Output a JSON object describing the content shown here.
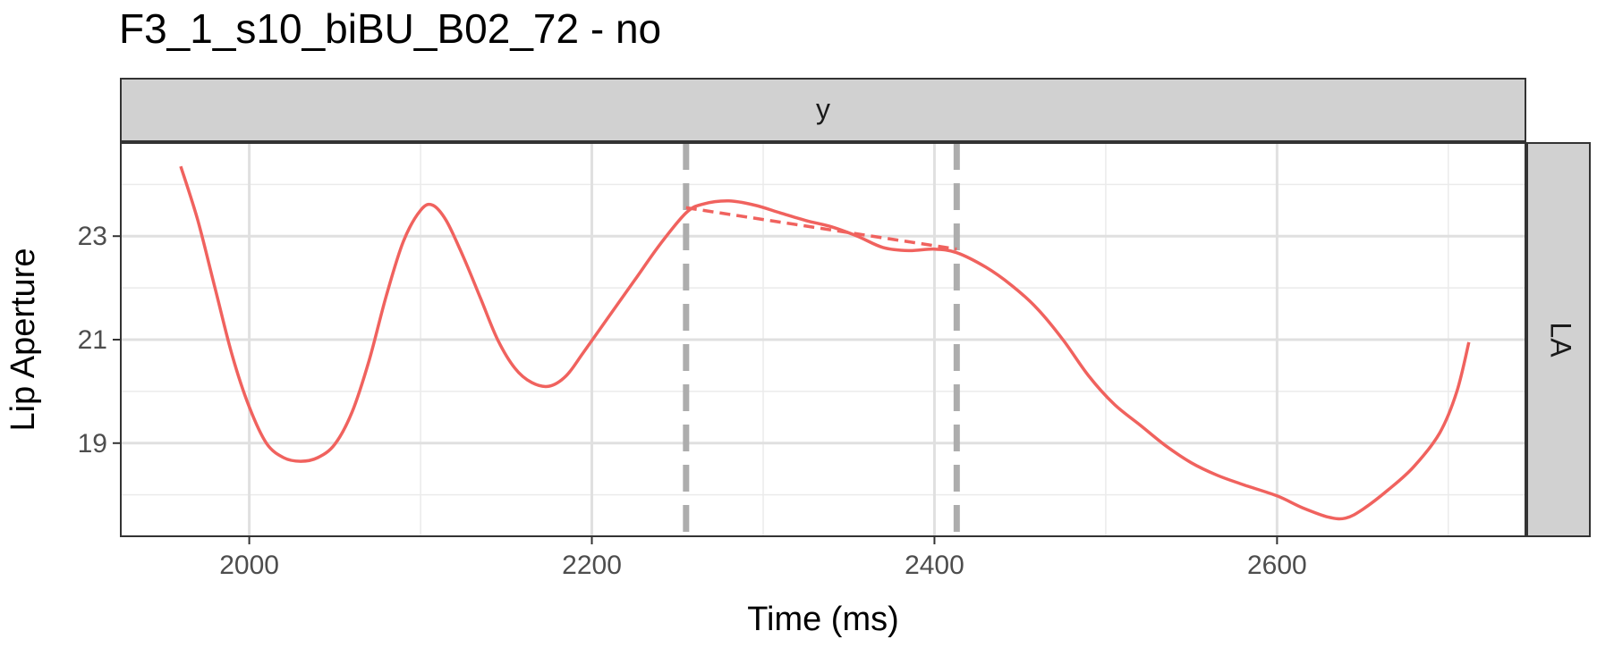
{
  "chart_data": {
    "type": "line",
    "title": "F3_1_s10_biBU_B02_72 - no",
    "xlabel": "Time (ms)",
    "ylabel": "Lip Aperture",
    "facet_top": "y",
    "facet_right": "LA",
    "xlim": [
      1925,
      2745
    ],
    "ylim": [
      17.2,
      24.8
    ],
    "x_ticks": [
      2000,
      2200,
      2400,
      2600
    ],
    "y_ticks": [
      19,
      21,
      23
    ],
    "grid": true,
    "legend": "none",
    "colors": {
      "series": "#F0625E",
      "vline": "#ADADAD"
    },
    "vlines": [
      2255,
      2413
    ],
    "series": [
      {
        "style": "solid",
        "x": [
          1960,
          1970,
          1980,
          1990,
          2000,
          2010,
          2020,
          2030,
          2040,
          2050,
          2060,
          2070,
          2080,
          2090,
          2100,
          2107,
          2115,
          2125,
          2135,
          2145,
          2155,
          2165,
          2175,
          2185,
          2195,
          2210,
          2225,
          2240,
          2255,
          2265,
          2280,
          2295,
          2310,
          2325,
          2340,
          2355,
          2370,
          2385,
          2400,
          2413,
          2430,
          2445,
          2460,
          2475,
          2490,
          2505,
          2520,
          2535,
          2550,
          2565,
          2580,
          2600,
          2615,
          2630,
          2640,
          2650,
          2665,
          2680,
          2695,
          2705,
          2712
        ],
        "y": [
          24.35,
          23.3,
          22.0,
          20.7,
          19.7,
          19.0,
          18.72,
          18.65,
          18.72,
          18.98,
          19.6,
          20.6,
          21.85,
          22.9,
          23.5,
          23.6,
          23.3,
          22.6,
          21.8,
          21.0,
          20.45,
          20.17,
          20.1,
          20.3,
          20.75,
          21.45,
          22.15,
          22.85,
          23.45,
          23.62,
          23.68,
          23.6,
          23.45,
          23.3,
          23.18,
          23.0,
          22.78,
          22.72,
          22.75,
          22.68,
          22.4,
          22.05,
          21.6,
          21.0,
          20.3,
          19.75,
          19.35,
          18.95,
          18.62,
          18.38,
          18.2,
          17.98,
          17.75,
          17.57,
          17.55,
          17.72,
          18.1,
          18.55,
          19.2,
          20.0,
          20.95
        ]
      },
      {
        "style": "dashed",
        "x": [
          2255,
          2413
        ],
        "y": [
          23.55,
          22.75
        ]
      }
    ]
  }
}
